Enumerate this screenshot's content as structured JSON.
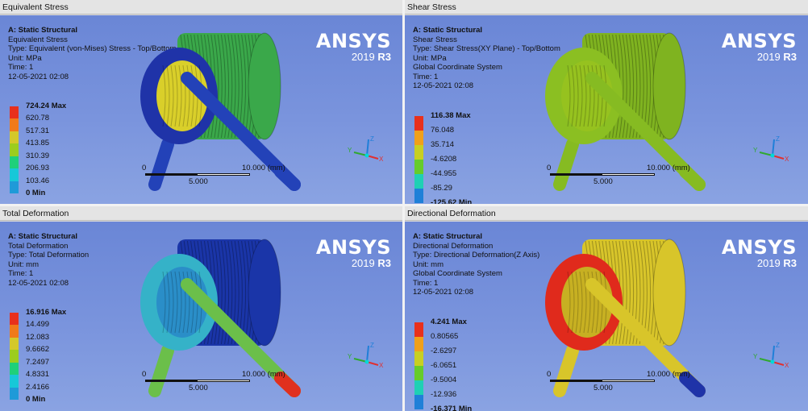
{
  "panels": [
    {
      "tab_title": "Equivalent Stress",
      "info": [
        "A: Static Structural",
        "Equivalent Stress",
        "Type: Equivalent (von-Mises) Stress - Top/Bottom",
        "Unit: MPa",
        "Time: 1",
        "12-05-2021 02:08"
      ],
      "legend": [
        "724.24 Max",
        "620.78",
        "517.31",
        "413.85",
        "310.39",
        "206.93",
        "103.46",
        "0 Min"
      ],
      "scale_left": "0",
      "scale_mid": "5.000",
      "scale_right": "10.000 (mm)",
      "coil_color": "#3aa84a",
      "coil_inner_color": "#d9cf2a",
      "ring_color": "#1f33a8",
      "rod_color": "#2342b8",
      "rod_tip_color": "#2342b8"
    },
    {
      "tab_title": "Shear Stress",
      "info": [
        "A: Static Structural",
        "Shear Stress",
        "Type: Shear Stress(XY Plane) - Top/Bottom",
        "Unit: MPa",
        "Global Coordinate System",
        "Time: 1",
        "12-05-2021 02:08"
      ],
      "legend": [
        "116.38 Max",
        "76.048",
        "35.714",
        "-4.6208",
        "-44.955",
        "-85.29",
        "-125.62 Min"
      ],
      "scale_left": "0",
      "scale_mid": "5.000",
      "scale_right": "10.000 (mm)",
      "coil_color": "#7fb320",
      "coil_inner_color": "#96c21f",
      "ring_color": "#8bbf22",
      "rod_color": "#86bb22",
      "rod_tip_color": "#86bb22"
    },
    {
      "tab_title": "Total Deformation",
      "info": [
        "A: Static Structural",
        "Total Deformation",
        "Type: Total Deformation",
        "Unit: mm",
        "Time: 1",
        "12-05-2021 02:08"
      ],
      "legend": [
        "16.916 Max",
        "14.499",
        "12.083",
        "9.6662",
        "7.2497",
        "4.8331",
        "2.4166",
        "0 Min"
      ],
      "scale_left": "0",
      "scale_mid": "5.000",
      "scale_right": "10.000 (mm)",
      "coil_color": "#1a35a8",
      "coil_inner_color": "#2a8ec8",
      "ring_color": "#35b2c8",
      "rod_color": "#6bbf4a",
      "rod_tip_color": "#e0301e"
    },
    {
      "tab_title": "Directional Deformation",
      "info": [
        "A: Static Structural",
        "Directional Deformation",
        "Type: Directional Deformation(Z Axis)",
        "Unit: mm",
        "Global Coordinate System",
        "Time: 1",
        "12-05-2021 02:08"
      ],
      "legend": [
        "4.241 Max",
        "0.80565",
        "-2.6297",
        "-6.0651",
        "-9.5004",
        "-12.936",
        "-16.371 Min"
      ],
      "scale_left": "0",
      "scale_mid": "5.000",
      "scale_right": "10.000 (mm)",
      "coil_color": "#d8c52a",
      "coil_inner_color": "#c7b022",
      "ring_color": "#e02a1c",
      "rod_color": "#d8c52a",
      "rod_tip_color": "#1f33a8"
    }
  ],
  "brand": {
    "logo": "ANSYS",
    "version_prefix": "2019",
    "version_suffix": "R3"
  },
  "triad": {
    "x": "X",
    "y": "Y",
    "z": "Z"
  },
  "legend_colors_8": [
    "#e8301c",
    "#f07a1a",
    "#d4c82a",
    "#9ccd1e",
    "#1fd07a",
    "#17c8d8",
    "#1f9ad8",
    "#1a2fd6"
  ],
  "legend_colors_7": [
    "#e8301c",
    "#f0a01a",
    "#c8cf22",
    "#66cc2a",
    "#1fd0b4",
    "#1f80d8",
    "#1a2fd6"
  ]
}
